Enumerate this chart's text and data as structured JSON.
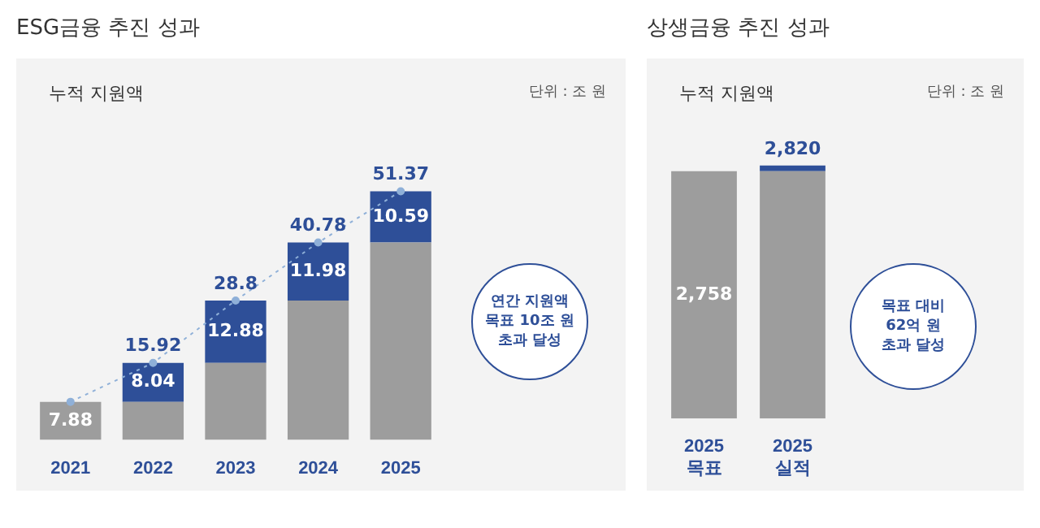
{
  "chart_data": [
    {
      "type": "bar",
      "title": "ESG금융 추진 성과",
      "subtitle": "누적 지원액",
      "annotations": [
        "단위 : 조 원",
        "연간 지원액\n목표 10조 원\n초과 달성"
      ],
      "categories": [
        "2021",
        "2022",
        "2023",
        "2024",
        "2025"
      ],
      "stacked": true,
      "tick_labels": "x",
      "grid": false,
      "legend": false,
      "series": [
        {
          "color": "#9d9d9d",
          "values": [
            7.88,
            7.88,
            15.92,
            28.8,
            40.78
          ],
          "value_labels": [
            "7.88",
            null,
            null,
            null,
            null
          ]
        },
        {
          "color": "#2e4f98",
          "values": [
            null,
            8.04,
            12.88,
            11.98,
            10.59
          ],
          "value_labels": [
            null,
            "8.04",
            "12.88",
            "11.98",
            "10.59"
          ]
        },
        {
          "type": "line",
          "color": "#8fb0d8",
          "line_style": "dotted",
          "marker": "circle",
          "values": [
            7.88,
            15.92,
            28.8,
            40.78,
            51.37
          ]
        }
      ],
      "totals": [
        null,
        "15.92",
        "28.8",
        "40.78",
        "51.37"
      ]
    },
    {
      "type": "bar",
      "title": "상생금융 추진 성과",
      "subtitle": "누적 지원액",
      "annotations": [
        "단위 : 조 원",
        "목표 대비\n62억 원\n초과 달성"
      ],
      "categories": [
        "2025\n목표",
        "2025\n실적"
      ],
      "stacked": true,
      "tick_labels": "x",
      "grid": false,
      "legend": false,
      "series": [
        {
          "color": "#9d9d9d",
          "values": [
            2758,
            2758
          ],
          "value_labels": [
            "2,758",
            null
          ]
        },
        {
          "color": "#2e4f98",
          "values": [
            null,
            62
          ]
        }
      ],
      "totals": [
        null,
        "2,820"
      ]
    }
  ]
}
